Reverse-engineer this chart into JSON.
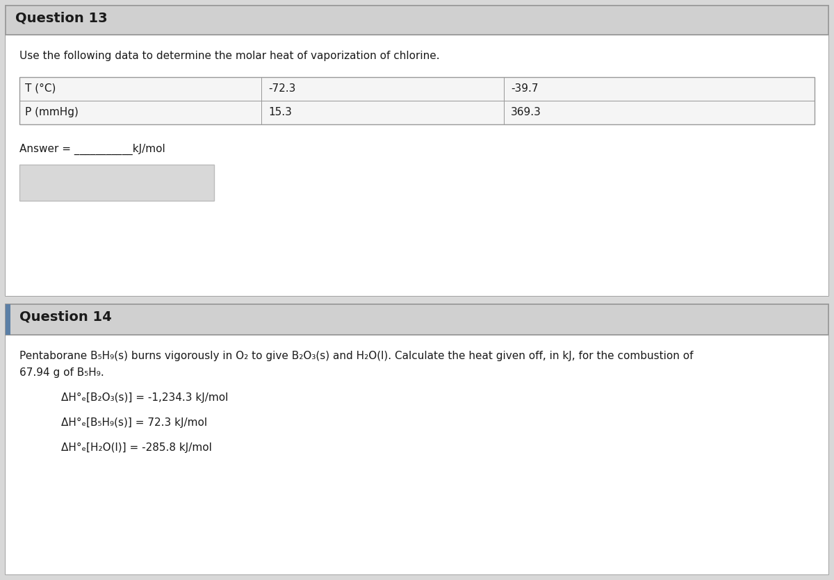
{
  "q13_title": "Question 13",
  "q13_instruction": "Use the following data to determine the molar heat of vaporization of chlorine.",
  "table_row1_label": "T (°C)",
  "table_row2_label": "P (mmHg)",
  "table_col1_r1": "-72.3",
  "table_col1_r2": "15.3",
  "table_col2_r1": "-39.7",
  "table_col2_r2": "369.3",
  "answer_text": "Answer = ___________kJ/mol",
  "q14_title": "Question 14",
  "q14_line1": "Pentaborane B₅H₉(s) burns vigorously in O₂ to give B₂O₃(s) and H₂O(l). Calculate the heat given off, in kJ, for the combustion of",
  "q14_line2": "67.94 g of B₅H₉.",
  "q14_data1": "ΔH°ₑ[B₂O₃(s)] = -1,234.3 kJ/mol",
  "q14_data2": "ΔH°ₑ[B₅H₉(s)] = 72.3 kJ/mol",
  "q14_data3": "ΔH°ₑ[H₂O(l)] = -285.8 kJ/mol",
  "page_bg": "#d8d8d8",
  "content_bg": "#e8e8e8",
  "white": "#ffffff",
  "border_dark": "#999999",
  "border_light": "#bbbbbb",
  "text_dark": "#1a1a1a",
  "q13_header_bg": "#d0d0d0",
  "q14_header_bg": "#d0d0d0",
  "q14_accent": "#5b7fa6",
  "input_box_bg": "#d8d8d8",
  "table_bg": "#f5f5f5"
}
